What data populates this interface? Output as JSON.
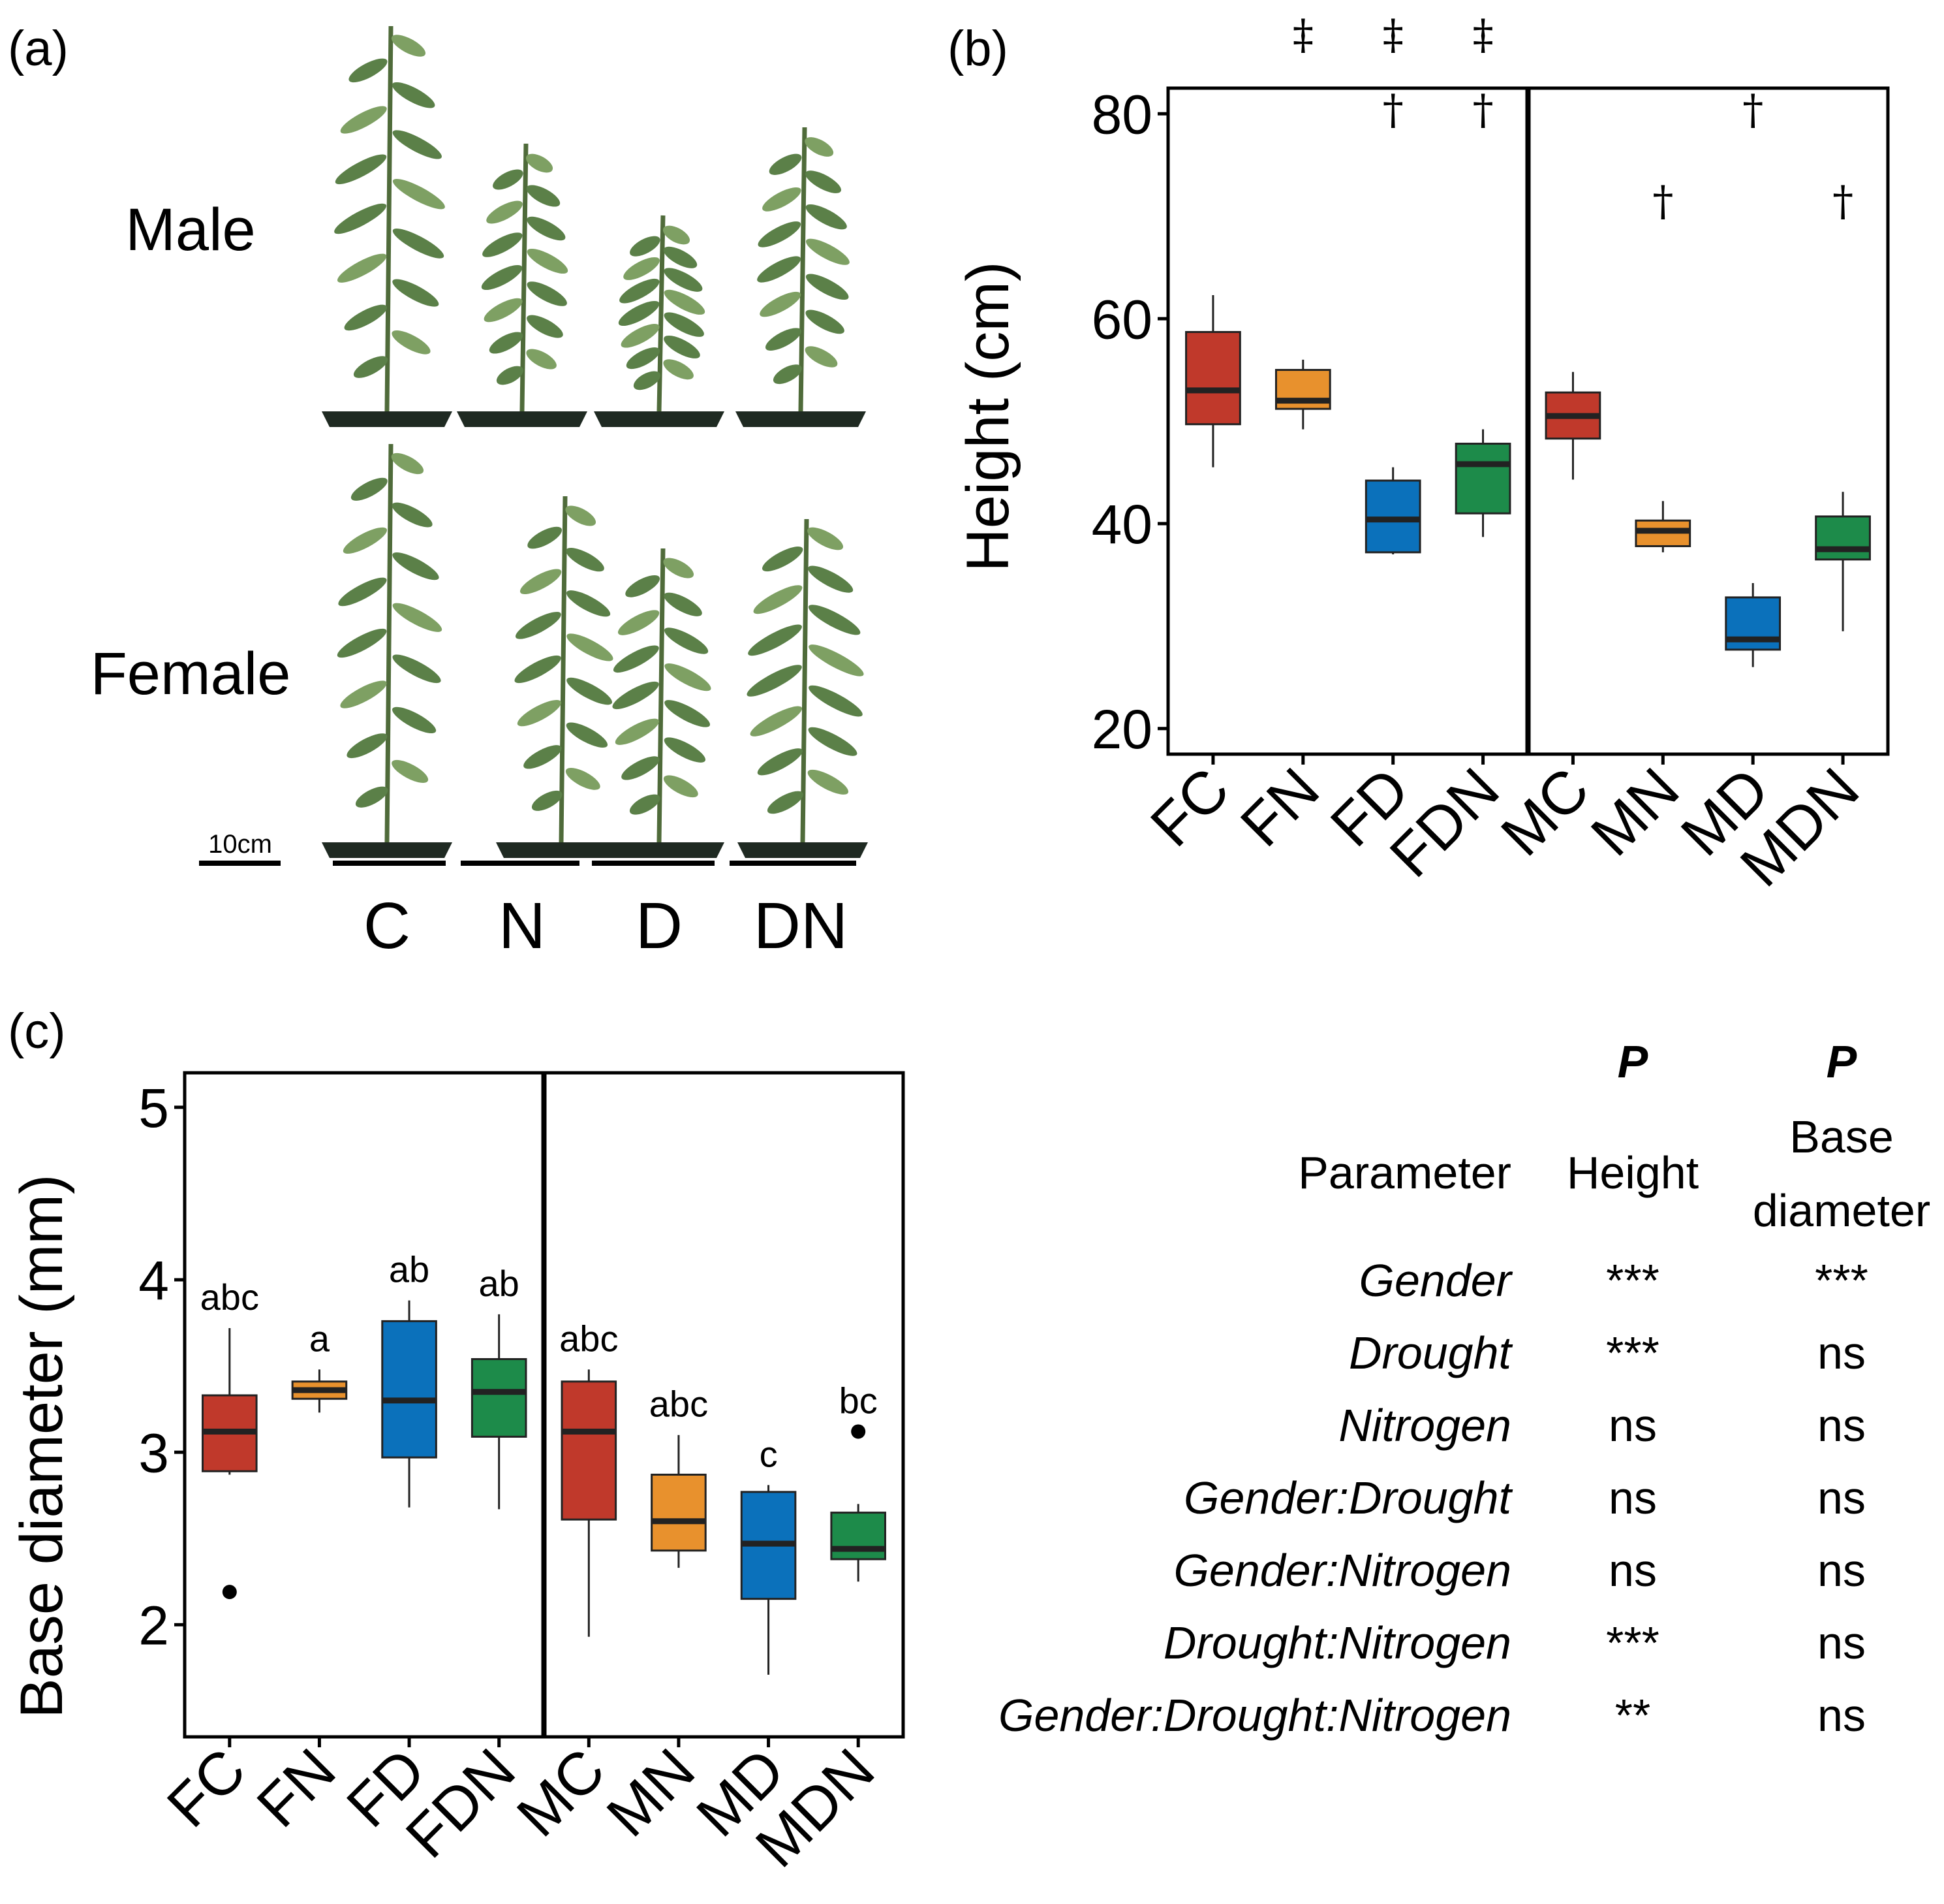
{
  "figure": {
    "panel_a_label": "(a)",
    "panel_b_label": "(b)",
    "panel_c_label": "(c)"
  },
  "photo_panel": {
    "row_labels": [
      "Male",
      "Female"
    ],
    "scale_bar_label": "10cm",
    "column_labels": [
      "C",
      "N",
      "D",
      "DN"
    ]
  },
  "colors": {
    "C": "#c0392b",
    "N": "#e8912d",
    "D": "#0b71bb",
    "DN": "#1d8b4a",
    "plant_leaf": "#5b8048",
    "plant_leaf_light": "#7ea063",
    "stem": "#4f6b3a",
    "pot": "#1f2a22"
  },
  "chart_data": [
    {
      "type": "box",
      "panel": "(b)",
      "ylabel": "Height (cm)",
      "ylim": [
        17.5,
        82.5
      ],
      "yticks": [
        20,
        40,
        60,
        80
      ],
      "categories": [
        "FC",
        "FN",
        "FD",
        "FDN",
        "MC",
        "MN",
        "MD",
        "MDN"
      ],
      "groups": [
        "C",
        "N",
        "D",
        "DN",
        "C",
        "N",
        "D",
        "DN"
      ],
      "divider_after_index": 3,
      "boxes": [
        {
          "whisker_low": 45.5,
          "q1": 49.7,
          "median": 53.0,
          "q3": 58.7,
          "whisker_high": 62.3,
          "outliers": []
        },
        {
          "whisker_low": 49.2,
          "q1": 51.2,
          "median": 52.0,
          "q3": 55.0,
          "whisker_high": 56.0,
          "outliers": []
        },
        {
          "whisker_low": 37.0,
          "q1": 37.2,
          "median": 40.4,
          "q3": 44.2,
          "whisker_high": 45.5,
          "outliers": []
        },
        {
          "whisker_low": 38.7,
          "q1": 41.0,
          "median": 45.8,
          "q3": 47.8,
          "whisker_high": 49.2,
          "outliers": []
        },
        {
          "whisker_low": 44.3,
          "q1": 48.3,
          "median": 50.5,
          "q3": 52.8,
          "whisker_high": 54.8,
          "outliers": []
        },
        {
          "whisker_low": 37.2,
          "q1": 37.8,
          "median": 39.3,
          "q3": 40.3,
          "whisker_high": 42.2,
          "outliers": []
        },
        {
          "whisker_low": 26.0,
          "q1": 27.7,
          "median": 28.7,
          "q3": 32.8,
          "whisker_high": 34.2,
          "outliers": []
        },
        {
          "whisker_low": 29.5,
          "q1": 36.5,
          "median": 37.5,
          "q3": 40.7,
          "whisker_high": 43.1,
          "outliers": []
        }
      ],
      "annotations": [
        {
          "category": "FN",
          "symbol": "‡"
        },
        {
          "category": "FD",
          "symbol": "‡†"
        },
        {
          "category": "FDN",
          "symbol": "‡†"
        },
        {
          "category": "MN",
          "symbol": "†"
        },
        {
          "category": "MD",
          "symbol": "†"
        },
        {
          "category": "MDN",
          "symbol": "†"
        }
      ]
    },
    {
      "type": "box",
      "panel": "(c)",
      "ylabel": "Base diameter (mm)",
      "ylim": [
        1.35,
        5.2
      ],
      "yticks": [
        2,
        3,
        4,
        5
      ],
      "categories": [
        "FC",
        "FN",
        "FD",
        "FDN",
        "MC",
        "MN",
        "MD",
        "MDN"
      ],
      "groups": [
        "C",
        "N",
        "D",
        "DN",
        "C",
        "N",
        "D",
        "DN"
      ],
      "divider_after_index": 3,
      "boxes": [
        {
          "whisker_low": 2.87,
          "q1": 2.89,
          "median": 3.12,
          "q3": 3.33,
          "whisker_high": 3.72,
          "outliers": [
            2.19
          ]
        },
        {
          "whisker_low": 3.23,
          "q1": 3.31,
          "median": 3.36,
          "q3": 3.41,
          "whisker_high": 3.48,
          "outliers": []
        },
        {
          "whisker_low": 2.68,
          "q1": 2.97,
          "median": 3.3,
          "q3": 3.76,
          "whisker_high": 3.88,
          "outliers": []
        },
        {
          "whisker_low": 2.67,
          "q1": 3.09,
          "median": 3.35,
          "q3": 3.54,
          "whisker_high": 3.8,
          "outliers": []
        },
        {
          "whisker_low": 1.93,
          "q1": 2.61,
          "median": 3.12,
          "q3": 3.41,
          "whisker_high": 3.48,
          "outliers": []
        },
        {
          "whisker_low": 2.33,
          "q1": 2.43,
          "median": 2.6,
          "q3": 2.87,
          "whisker_high": 3.1,
          "outliers": []
        },
        {
          "whisker_low": 1.71,
          "q1": 2.15,
          "median": 2.47,
          "q3": 2.77,
          "whisker_high": 2.81,
          "outliers": []
        },
        {
          "whisker_low": 2.25,
          "q1": 2.38,
          "median": 2.44,
          "q3": 2.65,
          "whisker_high": 2.7,
          "outliers": [
            3.12
          ]
        }
      ],
      "letters": [
        "abc",
        "a",
        "ab",
        "ab",
        "abc",
        "abc",
        "c",
        "bc"
      ]
    }
  ],
  "stats_table": {
    "p_header": "P",
    "param_header": "Parameter",
    "height_header": "Height",
    "base_header_line1": "Base",
    "base_header_line2": "diameter",
    "rows": [
      {
        "parameter": "Gender",
        "height": "***",
        "base": "***"
      },
      {
        "parameter": "Drought",
        "height": "***",
        "base": "ns"
      },
      {
        "parameter": "Nitrogen",
        "height": "ns",
        "base": "ns"
      },
      {
        "parameter": "Gender:Drought",
        "height": "ns",
        "base": "ns"
      },
      {
        "parameter": "Gender:Nitrogen",
        "height": "ns",
        "base": "ns"
      },
      {
        "parameter": "Drought:Nitrogen",
        "height": "***",
        "base": "ns"
      },
      {
        "parameter": "Gender:Drought:Nitrogen",
        "height": "**",
        "base": "ns"
      }
    ]
  }
}
